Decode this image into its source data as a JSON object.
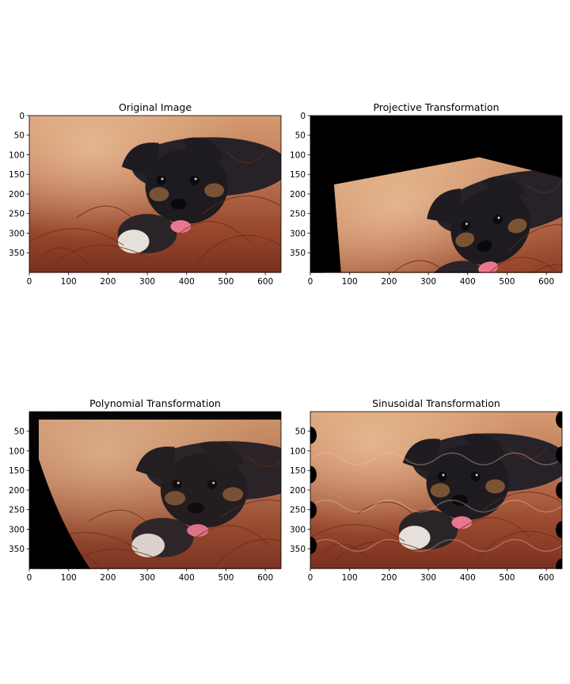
{
  "chart_data": [
    {
      "type": "image",
      "title": "Original Image",
      "transformation": "none",
      "xlim": [
        0,
        640
      ],
      "ylim": [
        400,
        0
      ],
      "xticks": [
        0,
        100,
        200,
        300,
        400,
        500,
        600
      ],
      "yticks": [
        0,
        50,
        100,
        150,
        200,
        250,
        300,
        350
      ],
      "xlabel": "",
      "ylabel": "",
      "image_content": "photo of a black and tan puppy lying in dry red-brown grass",
      "colors": {
        "background_top": "#c9875f",
        "grass": "#8a3b22",
        "dog": "#1d1b1f",
        "tongue": "#e8788f"
      }
    },
    {
      "type": "image",
      "title": "Projective Transformation",
      "transformation": "projective",
      "xlim": [
        0,
        640
      ],
      "ylim": [
        400,
        0
      ],
      "xticks": [
        0,
        100,
        200,
        300,
        400,
        500,
        600
      ],
      "yticks": [
        0,
        50,
        100,
        150,
        200,
        250,
        300,
        350
      ],
      "xlabel": "",
      "ylabel": "",
      "fill_color": "#000000"
    },
    {
      "type": "image",
      "title": "Polynomial Transformation",
      "transformation": "polynomial",
      "xlim": [
        0,
        640
      ],
      "ylim": [
        400,
        0
      ],
      "xticks": [
        0,
        100,
        200,
        300,
        400,
        500,
        600
      ],
      "yticks": [
        50,
        100,
        150,
        200,
        250,
        300,
        350
      ],
      "xlabel": "",
      "ylabel": "",
      "fill_color": "#000000"
    },
    {
      "type": "image",
      "title": "Sinusoidal Transformation",
      "transformation": "sinusoidal",
      "xlim": [
        0,
        640
      ],
      "ylim": [
        400,
        0
      ],
      "xticks": [
        0,
        100,
        200,
        300,
        400,
        500,
        600
      ],
      "yticks": [
        50,
        100,
        150,
        200,
        250,
        300,
        350
      ],
      "xlabel": "",
      "ylabel": "",
      "fill_color": "#000000"
    }
  ]
}
